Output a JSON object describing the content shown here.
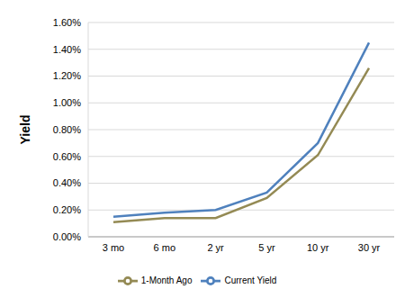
{
  "chart_data": {
    "type": "line",
    "y_label": "Yield",
    "categories": [
      "3 mo",
      "6 mo",
      "2 yr",
      "5 yr",
      "10 yr",
      "30 yr"
    ],
    "series": [
      {
        "name": "Current Yield",
        "color": "#4f81bd",
        "values": [
          0.15,
          0.18,
          0.2,
          0.33,
          0.7,
          1.45
        ]
      },
      {
        "name": "1-Month Ago",
        "color": "#948a54",
        "values": [
          0.11,
          0.14,
          0.14,
          0.29,
          0.61,
          1.26
        ]
      }
    ],
    "ylim": [
      0,
      1.6
    ],
    "yticks": [
      {
        "value": 0,
        "label": "0.00%"
      },
      {
        "value": 0.2,
        "label": "0.20%"
      },
      {
        "value": 0.4,
        "label": "0.40%"
      },
      {
        "value": 0.6,
        "label": "0.60%"
      },
      {
        "value": 0.8,
        "label": "0.80%"
      },
      {
        "value": 1.0,
        "label": "1.00%"
      },
      {
        "value": 1.2,
        "label": "1.20%"
      },
      {
        "value": 1.4,
        "label": "1.40%"
      },
      {
        "value": 1.6,
        "label": "1.60%"
      }
    ],
    "grid": true,
    "legend": "bottom"
  }
}
